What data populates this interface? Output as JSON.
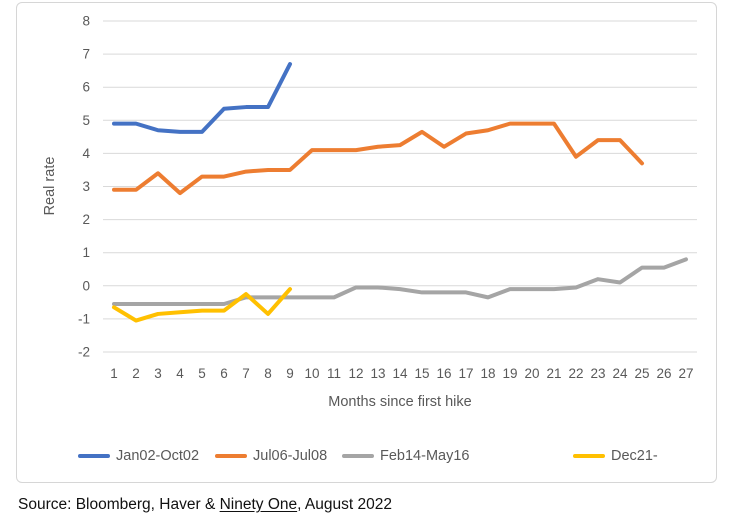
{
  "chart_data": {
    "type": "line",
    "xlabel": "Months since first hike",
    "ylabel": "Real rate",
    "ylim": [
      -2,
      8
    ],
    "yticks": [
      8,
      7,
      6,
      5,
      4,
      3,
      2,
      1,
      0,
      -1,
      -2
    ],
    "xticks": [
      1,
      2,
      3,
      4,
      5,
      6,
      7,
      8,
      9,
      10,
      11,
      12,
      13,
      14,
      15,
      16,
      17,
      18,
      19,
      20,
      21,
      22,
      23,
      24,
      25,
      26,
      27
    ],
    "grid": true,
    "legend_position": "bottom",
    "x": [
      1,
      2,
      3,
      4,
      5,
      6,
      7,
      8,
      9,
      10,
      11,
      12,
      13,
      14,
      15,
      16,
      17,
      18,
      19,
      20,
      21,
      22,
      23,
      24,
      25,
      26,
      27
    ],
    "series": [
      {
        "name": "Jan02-Oct02",
        "color": "#4472C4",
        "values": [
          4.9,
          4.9,
          4.7,
          4.65,
          4.65,
          5.35,
          5.4,
          5.4,
          6.7
        ]
      },
      {
        "name": "Jul06-Jul08",
        "color": "#ED7D31",
        "values": [
          2.9,
          2.9,
          3.4,
          2.8,
          3.3,
          3.3,
          3.45,
          3.5,
          3.5,
          4.1,
          4.1,
          4.1,
          4.2,
          4.25,
          4.65,
          4.2,
          4.6,
          4.7,
          4.9,
          4.9,
          4.9,
          3.9,
          4.4,
          4.4,
          3.7
        ]
      },
      {
        "name": "Feb14-May16",
        "color": "#A5A5A5",
        "values": [
          -0.55,
          -0.55,
          -0.55,
          -0.55,
          -0.55,
          -0.55,
          -0.35,
          -0.35,
          -0.35,
          -0.35,
          -0.35,
          -0.05,
          -0.05,
          -0.1,
          -0.2,
          -0.2,
          -0.2,
          -0.35,
          -0.1,
          -0.1,
          -0.1,
          -0.05,
          0.2,
          0.1,
          0.55,
          0.55,
          0.8
        ]
      },
      {
        "name": "Dec21-",
        "color": "#FFC000",
        "values": [
          -0.65,
          -1.05,
          -0.85,
          -0.8,
          -0.75,
          -0.75,
          -0.25,
          -0.85,
          -0.1
        ]
      }
    ]
  },
  "footer": {
    "source_prefix": "Source: Bloomberg, Haver & ",
    "source_link": "Ninety One",
    "source_suffix": ", August 2022"
  },
  "colors": {
    "grid": "#D9D9D9",
    "axis_text": "#595959",
    "frame_border": "#D6D6D6",
    "source_text": "#111111"
  }
}
